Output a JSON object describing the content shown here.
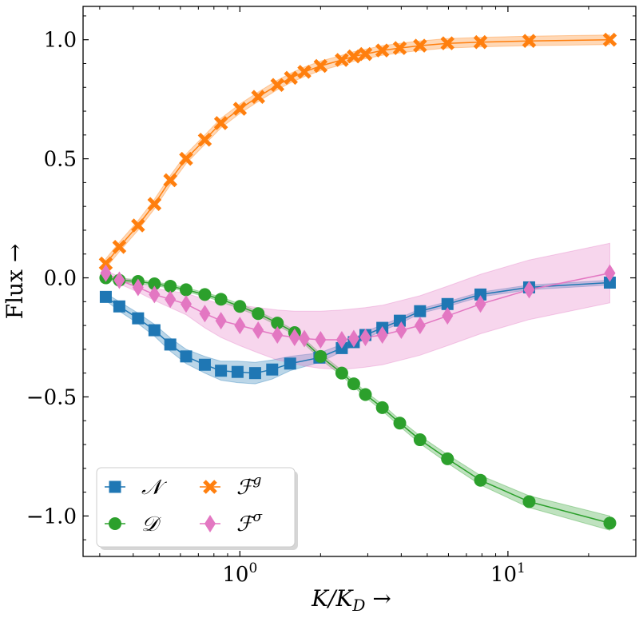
{
  "chart_data": {
    "type": "line",
    "xscale": "log",
    "xlim": [
      0.26,
      30
    ],
    "ylim": [
      -1.17,
      1.14
    ],
    "xlabel": "K/K_D →",
    "ylabel": "Flux →",
    "ylabel_text": "Flux →",
    "xlabel_main": "K/K",
    "xlabel_sub": "D",
    "xlabel_arrow": " →",
    "x_ticks": [
      {
        "value": 1,
        "base": "10",
        "exp": "0"
      },
      {
        "value": 10,
        "base": "10",
        "exp": "1"
      }
    ],
    "y_ticks": [
      {
        "value": 1.0,
        "label": "1.0"
      },
      {
        "value": 0.5,
        "label": "0.5"
      },
      {
        "value": 0.0,
        "label": "0.0"
      },
      {
        "value": -0.5,
        "label": "−0.5"
      },
      {
        "value": -1.0,
        "label": "−1.0"
      }
    ],
    "legend_position": "lower-left",
    "series": [
      {
        "name": "N",
        "label": "𝒩",
        "color": "#1f77b4",
        "marker": "square",
        "x": [
          0.316,
          0.355,
          0.417,
          0.48,
          0.55,
          0.63,
          0.74,
          0.85,
          0.98,
          1.14,
          1.32,
          1.54,
          1.98,
          2.4,
          2.66,
          2.94,
          3.4,
          3.95,
          4.7,
          5.95,
          7.9,
          12.0,
          24.0
        ],
        "y": [
          -0.08,
          -0.12,
          -0.17,
          -0.22,
          -0.28,
          -0.33,
          -0.365,
          -0.39,
          -0.395,
          -0.4,
          -0.385,
          -0.36,
          -0.335,
          -0.295,
          -0.27,
          -0.24,
          -0.21,
          -0.18,
          -0.14,
          -0.11,
          -0.07,
          -0.04,
          -0.02
        ],
        "band": [
          0.015,
          0.02,
          0.022,
          0.025,
          0.028,
          0.03,
          0.035,
          0.04,
          0.045,
          0.045,
          0.04,
          0.03,
          0.02,
          0.015,
          0.015,
          0.015,
          0.012,
          0.012,
          0.01,
          0.01,
          0.01,
          0.01,
          0.01
        ]
      },
      {
        "name": "D",
        "label": "𝒟",
        "color": "#2ca02c",
        "marker": "circle",
        "x": [
          0.316,
          0.355,
          0.417,
          0.48,
          0.55,
          0.63,
          0.74,
          0.85,
          1.0,
          1.17,
          1.38,
          1.6,
          2.0,
          2.4,
          2.66,
          2.94,
          3.4,
          3.95,
          4.7,
          5.95,
          7.9,
          12.0,
          24.0
        ],
        "y": [
          0.0,
          -0.01,
          -0.015,
          -0.025,
          -0.035,
          -0.05,
          -0.07,
          -0.09,
          -0.12,
          -0.15,
          -0.19,
          -0.23,
          -0.33,
          -0.4,
          -0.445,
          -0.49,
          -0.545,
          -0.61,
          -0.68,
          -0.76,
          -0.85,
          -0.94,
          -1.03
        ],
        "band": [
          0.008,
          0.008,
          0.008,
          0.008,
          0.008,
          0.008,
          0.008,
          0.01,
          0.01,
          0.01,
          0.01,
          0.01,
          0.012,
          0.012,
          0.012,
          0.012,
          0.014,
          0.014,
          0.016,
          0.018,
          0.02,
          0.025,
          0.03
        ]
      },
      {
        "name": "F_g",
        "label": "ℱ",
        "sup": "g",
        "color": "#ff7f0e",
        "marker": "x",
        "x": [
          0.316,
          0.355,
          0.417,
          0.48,
          0.55,
          0.63,
          0.74,
          0.85,
          1.0,
          1.17,
          1.38,
          1.55,
          1.74,
          2.0,
          2.4,
          2.66,
          2.94,
          3.4,
          3.95,
          4.7,
          5.95,
          7.9,
          12.0,
          24.0
        ],
        "y": [
          0.06,
          0.13,
          0.22,
          0.31,
          0.41,
          0.5,
          0.58,
          0.65,
          0.71,
          0.76,
          0.81,
          0.84,
          0.865,
          0.89,
          0.915,
          0.93,
          0.94,
          0.955,
          0.965,
          0.975,
          0.985,
          0.99,
          0.995,
          1.0
        ],
        "band": [
          0.02,
          0.02,
          0.02,
          0.02,
          0.02,
          0.02,
          0.02,
          0.02,
          0.02,
          0.02,
          0.02,
          0.02,
          0.02,
          0.02,
          0.02,
          0.02,
          0.02,
          0.02,
          0.02,
          0.02,
          0.02,
          0.02,
          0.02,
          0.02
        ]
      },
      {
        "name": "F_sigma",
        "label": "ℱ",
        "sup": "σ",
        "color": "#e377c2",
        "marker": "diamond",
        "x": [
          0.316,
          0.355,
          0.417,
          0.48,
          0.55,
          0.63,
          0.74,
          0.85,
          1.0,
          1.17,
          1.38,
          1.6,
          1.74,
          2.0,
          2.4,
          2.66,
          2.94,
          3.4,
          4.0,
          4.7,
          5.95,
          7.9,
          12.0,
          24.0
        ],
        "y": [
          0.02,
          -0.01,
          -0.04,
          -0.07,
          -0.09,
          -0.11,
          -0.15,
          -0.18,
          -0.2,
          -0.22,
          -0.24,
          -0.25,
          -0.255,
          -0.26,
          -0.26,
          -0.255,
          -0.25,
          -0.24,
          -0.22,
          -0.2,
          -0.16,
          -0.11,
          -0.05,
          0.02
        ],
        "band": [
          0.01,
          0.015,
          0.02,
          0.025,
          0.035,
          0.045,
          0.06,
          0.07,
          0.085,
          0.095,
          0.105,
          0.11,
          0.115,
          0.12,
          0.125,
          0.125,
          0.125,
          0.125,
          0.125,
          0.125,
          0.125,
          0.125,
          0.125,
          0.125
        ]
      }
    ]
  }
}
